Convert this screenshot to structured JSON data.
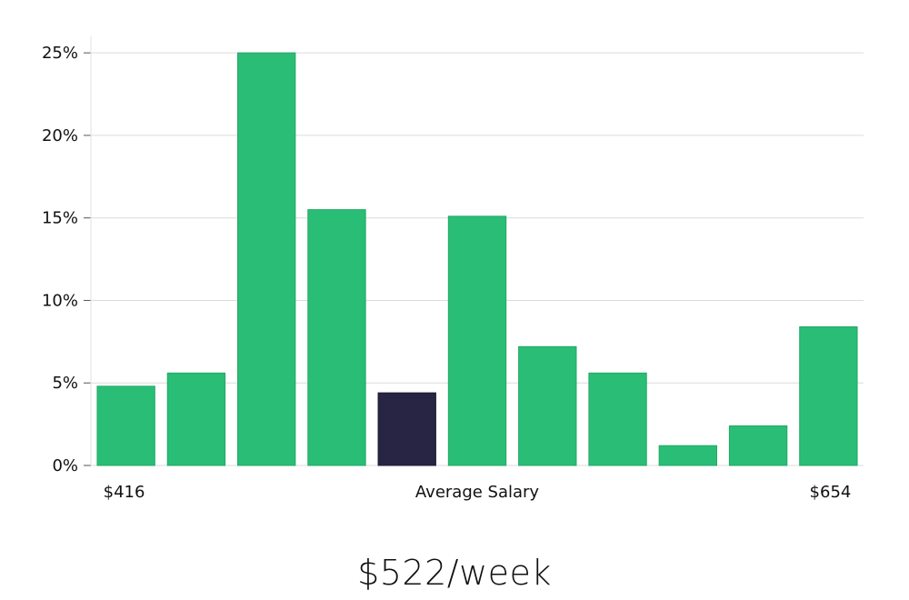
{
  "chart_data": {
    "type": "bar",
    "values": [
      4.8,
      5.6,
      25.0,
      15.5,
      4.4,
      15.1,
      7.2,
      5.6,
      1.2,
      2.4,
      8.4
    ],
    "highlight_index": 4,
    "bar_color": "#2abd76",
    "highlight_color": "#272543",
    "ylim": [
      0,
      26
    ],
    "yticks": [
      0,
      5,
      10,
      15,
      20,
      25
    ],
    "ytick_labels": [
      "0%",
      "5%",
      "10%",
      "15%",
      "20%",
      "25%"
    ],
    "grid": true,
    "x_min_label": "$416",
    "x_center_label": "Average Salary",
    "x_max_label": "$654"
  },
  "average_salary": "$522/week"
}
